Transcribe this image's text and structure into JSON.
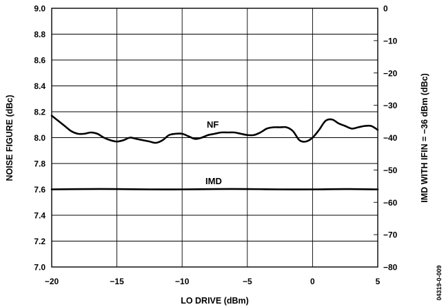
{
  "chart_data": {
    "type": "line",
    "xlabel": "LO DRIVE (dBm)",
    "ylabel_left": "NOISE FIGURE (dBc)",
    "ylabel_right": "IMD WITH IFIN = −36 dBm (dBc)",
    "xlim": [
      -20,
      5
    ],
    "ylim_left": [
      7.0,
      9.0
    ],
    "ylim_right": [
      -80,
      0
    ],
    "x_ticks": [
      -20,
      -15,
      -10,
      -5,
      0,
      5
    ],
    "x_tick_labels": [
      "−20",
      "−15",
      "−10",
      "−5",
      "0",
      "5"
    ],
    "y_left_ticks": [
      7.0,
      7.2,
      7.4,
      7.6,
      7.8,
      8.0,
      8.2,
      8.4,
      8.6,
      8.8,
      9.0
    ],
    "y_left_tick_labels": [
      "7.0",
      "7.2",
      "7.4",
      "7.6",
      "7.8",
      "8.0",
      "8.2",
      "8.4",
      "8.6",
      "8.8",
      "9.0"
    ],
    "y_right_ticks": [
      -80,
      -70,
      -60,
      -50,
      -40,
      -30,
      -20,
      -10,
      0
    ],
    "y_right_tick_labels": [
      "−80",
      "−70",
      "−60",
      "−50",
      "−40",
      "−30",
      "−20",
      "−10",
      "0"
    ],
    "grid": true,
    "series": [
      {
        "name": "NF",
        "axis": "left",
        "x": [
          -20,
          -19.5,
          -19,
          -18.5,
          -18,
          -17.5,
          -17,
          -16.5,
          -16,
          -15.5,
          -15,
          -14.5,
          -14,
          -13.5,
          -13,
          -12.5,
          -12,
          -11.5,
          -11,
          -10.5,
          -10,
          -9.5,
          -9,
          -8.5,
          -8,
          -7.5,
          -7,
          -6.5,
          -6,
          -5.5,
          -5,
          -4.5,
          -4,
          -3.5,
          -3,
          -2.5,
          -2,
          -1.5,
          -1,
          -0.5,
          0,
          0.5,
          1,
          1.5,
          2,
          2.5,
          3,
          3.5,
          4,
          4.5,
          5
        ],
        "values": [
          8.17,
          8.13,
          8.09,
          8.05,
          8.03,
          8.03,
          8.04,
          8.03,
          8.0,
          7.98,
          7.97,
          7.98,
          8.0,
          7.99,
          7.98,
          7.97,
          7.96,
          7.98,
          8.02,
          8.03,
          8.03,
          8.01,
          7.99,
          8.0,
          8.02,
          8.03,
          8.04,
          8.04,
          8.04,
          8.03,
          8.02,
          8.02,
          8.04,
          8.07,
          8.08,
          8.08,
          8.08,
          8.05,
          7.98,
          7.97,
          8.0,
          8.06,
          8.13,
          8.14,
          8.11,
          8.09,
          8.07,
          8.08,
          8.09,
          8.09,
          8.06
        ]
      },
      {
        "name": "IMD",
        "axis": "right",
        "x": [
          -20,
          -17.5,
          -15,
          -12.5,
          -10,
          -7.5,
          -5,
          -2.5,
          0,
          2.5,
          5
        ],
        "values": [
          -56.0,
          -55.9,
          -55.9,
          -56.0,
          -56.0,
          -55.9,
          -55.9,
          -56.0,
          -56.0,
          -55.9,
          -56.0
        ]
      }
    ],
    "figure_id": "04319-0-009"
  }
}
